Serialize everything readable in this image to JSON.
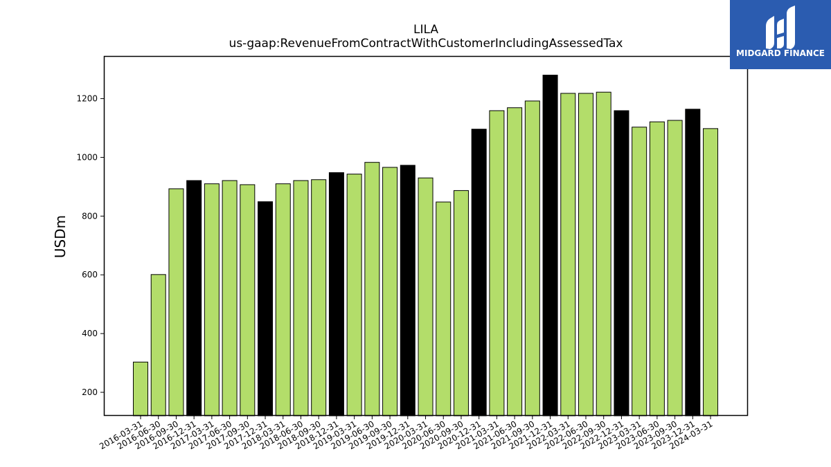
{
  "brand": {
    "name": "MIDGARD FINANCE",
    "color": "#2b5cb0"
  },
  "chart_data": {
    "type": "bar",
    "title": "LILA",
    "subtitle": "us-gaap:RevenueFromContractWithCustomerIncludingAssessedTax",
    "xlabel": "",
    "ylabel": "USDm",
    "ylim": [
      120,
      1345
    ],
    "yticks": [
      200,
      400,
      600,
      800,
      1000,
      1200
    ],
    "grid": false,
    "colors": {
      "quarter": "#b3dd6a",
      "year_end": "#000000",
      "edge": "#000000"
    },
    "categories": [
      "2016-03-31",
      "2016-06-30",
      "2016-09-30",
      "2016-12-31",
      "2017-03-31",
      "2017-06-30",
      "2017-09-30",
      "2017-12-31",
      "2018-03-31",
      "2018-06-30",
      "2018-09-30",
      "2018-12-31",
      "2019-03-31",
      "2019-06-30",
      "2019-09-30",
      "2019-12-31",
      "2020-03-31",
      "2020-06-30",
      "2020-09-30",
      "2020-12-31",
      "2021-03-31",
      "2021-06-30",
      "2021-09-30",
      "2021-12-31",
      "2022-03-31",
      "2022-06-30",
      "2022-09-30",
      "2022-12-31",
      "2023-03-31",
      "2023-06-30",
      "2023-09-30",
      "2023-12-31",
      "2024-03-31"
    ],
    "values": [
      303,
      601,
      893,
      921,
      910,
      921,
      907,
      849,
      910,
      921,
      924,
      948,
      943,
      983,
      966,
      973,
      930,
      848,
      887,
      1096,
      1159,
      1169,
      1192,
      1280,
      1218,
      1218,
      1222,
      1159,
      1103,
      1121,
      1126,
      1164,
      1098
    ]
  }
}
